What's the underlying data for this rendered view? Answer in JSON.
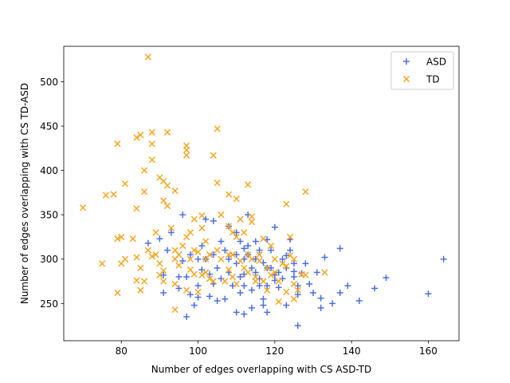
{
  "chart_data": {
    "type": "scatter",
    "title": "",
    "xlabel": "Number of edges overlapping with CS ASD-TD",
    "ylabel": "Number of edges overlapping with CS TD-ASD",
    "xlim": [
      65,
      168
    ],
    "ylim": [
      208,
      540
    ],
    "xticks": [
      80,
      100,
      120,
      140,
      160
    ],
    "yticks": [
      250,
      300,
      350,
      400,
      450,
      500
    ],
    "grid": false,
    "legend_position": "top-right",
    "series": [
      {
        "name": "ASD",
        "marker": "plus",
        "color": "#4c6fe0",
        "points": [
          [
            87,
            318
          ],
          [
            90,
            323
          ],
          [
            91,
            282
          ],
          [
            91,
            262
          ],
          [
            92,
            310
          ],
          [
            93,
            330
          ],
          [
            95,
            267
          ],
          [
            95,
            280
          ],
          [
            96,
            350
          ],
          [
            96,
            298
          ],
          [
            97,
            280
          ],
          [
            97,
            235
          ],
          [
            98,
            305
          ],
          [
            98,
            260
          ],
          [
            99,
            248
          ],
          [
            100,
            300
          ],
          [
            100,
            270
          ],
          [
            100,
            257
          ],
          [
            101,
            315
          ],
          [
            101,
            288
          ],
          [
            102,
            345
          ],
          [
            102,
            300
          ],
          [
            103,
            283
          ],
          [
            103,
            258
          ],
          [
            104,
            343
          ],
          [
            104,
            305
          ],
          [
            104,
            272
          ],
          [
            105,
            253
          ],
          [
            105,
            290
          ],
          [
            106,
            320
          ],
          [
            106,
            278
          ],
          [
            107,
            310
          ],
          [
            107,
            255
          ],
          [
            108,
            337
          ],
          [
            108,
            300
          ],
          [
            108,
            285
          ],
          [
            109,
            270
          ],
          [
            110,
            330
          ],
          [
            110,
            305
          ],
          [
            110,
            295
          ],
          [
            110,
            240
          ],
          [
            111,
            320
          ],
          [
            111,
            280
          ],
          [
            111,
            262
          ],
          [
            112,
            312
          ],
          [
            112,
            300
          ],
          [
            112,
            283
          ],
          [
            112,
            270
          ],
          [
            112,
            238
          ],
          [
            113,
            350
          ],
          [
            113,
            315
          ],
          [
            113,
            305
          ],
          [
            114,
            290
          ],
          [
            114,
            265
          ],
          [
            114,
            245
          ],
          [
            115,
            320
          ],
          [
            115,
            300
          ],
          [
            115,
            285
          ],
          [
            116,
            278
          ],
          [
            116,
            310
          ],
          [
            116,
            270
          ],
          [
            117,
            296
          ],
          [
            117,
            255
          ],
          [
            117,
            248
          ],
          [
            118,
            322
          ],
          [
            118,
            290
          ],
          [
            118,
            270
          ],
          [
            118,
            240
          ],
          [
            119,
            310
          ],
          [
            119,
            290
          ],
          [
            120,
            336
          ],
          [
            120,
            282
          ],
          [
            120,
            276
          ],
          [
            121,
            285
          ],
          [
            121,
            268
          ],
          [
            122,
            300
          ],
          [
            122,
            278
          ],
          [
            123,
            304
          ],
          [
            123,
            290
          ],
          [
            123,
            248
          ],
          [
            124,
            322
          ],
          [
            124,
            310
          ],
          [
            125,
            295
          ],
          [
            125,
            280
          ],
          [
            125,
            286
          ],
          [
            126,
            270
          ],
          [
            126,
            260
          ],
          [
            126,
            225
          ],
          [
            127,
            284
          ],
          [
            128,
            295
          ],
          [
            129,
            272
          ],
          [
            130,
            262
          ],
          [
            131,
            285
          ],
          [
            132,
            245
          ],
          [
            132,
            256
          ],
          [
            133,
            302
          ],
          [
            135,
            250
          ],
          [
            137,
            312
          ],
          [
            137,
            262
          ],
          [
            139,
            270
          ],
          [
            142,
            253
          ],
          [
            146,
            267
          ],
          [
            149,
            279
          ],
          [
            160,
            261
          ],
          [
            164,
            300
          ]
        ]
      },
      {
        "name": "TD",
        "marker": "x",
        "color": "#f5a623",
        "points": [
          [
            70,
            358
          ],
          [
            75,
            295
          ],
          [
            76,
            372
          ],
          [
            78,
            373
          ],
          [
            79,
            430
          ],
          [
            79,
            262
          ],
          [
            79,
            323
          ],
          [
            80,
            325
          ],
          [
            80,
            295
          ],
          [
            81,
            385
          ],
          [
            81,
            300
          ],
          [
            83,
            323
          ],
          [
            84,
            357
          ],
          [
            84,
            437
          ],
          [
            84,
            302
          ],
          [
            84,
            276
          ],
          [
            85,
            440
          ],
          [
            85,
            290
          ],
          [
            85,
            265
          ],
          [
            86,
            376
          ],
          [
            86,
            275
          ],
          [
            86,
            400
          ],
          [
            87,
            528
          ],
          [
            87,
            310
          ],
          [
            88,
            443
          ],
          [
            88,
            430
          ],
          [
            88,
            412
          ],
          [
            88,
            303
          ],
          [
            89,
            305
          ],
          [
            89,
            330
          ],
          [
            90,
            392
          ],
          [
            90,
            282
          ],
          [
            90,
            295
          ],
          [
            91,
            366
          ],
          [
            91,
            388
          ],
          [
            91,
            287
          ],
          [
            91,
            275
          ],
          [
            92,
            443
          ],
          [
            92,
            383
          ],
          [
            92,
            360
          ],
          [
            93,
            335
          ],
          [
            94,
            377
          ],
          [
            94,
            310
          ],
          [
            94,
            300
          ],
          [
            94,
            272
          ],
          [
            94,
            243
          ],
          [
            95,
            293
          ],
          [
            95,
            305
          ],
          [
            96,
            315
          ],
          [
            97,
            428
          ],
          [
            97,
            417
          ],
          [
            97,
            423
          ],
          [
            97,
            325
          ],
          [
            97,
            265
          ],
          [
            98,
            330
          ],
          [
            98,
            300
          ],
          [
            98,
            288
          ],
          [
            99,
            345
          ],
          [
            99,
            310
          ],
          [
            99,
            283
          ],
          [
            100,
            308
          ],
          [
            100,
            263
          ],
          [
            101,
            335
          ],
          [
            101,
            349
          ],
          [
            101,
            282
          ],
          [
            102,
            320
          ],
          [
            102,
            300
          ],
          [
            102,
            285
          ],
          [
            103,
            305
          ],
          [
            103,
            278
          ],
          [
            104,
            417
          ],
          [
            104,
            275
          ],
          [
            105,
            447
          ],
          [
            105,
            386
          ],
          [
            105,
            310
          ],
          [
            106,
            300
          ],
          [
            106,
            350
          ],
          [
            107,
            275
          ],
          [
            108,
            373
          ],
          [
            108,
            337
          ],
          [
            108,
            305
          ],
          [
            108,
            288
          ],
          [
            109,
            330
          ],
          [
            109,
            305
          ],
          [
            109,
            280
          ],
          [
            110,
            368
          ],
          [
            110,
            325
          ],
          [
            110,
            272
          ],
          [
            111,
            298
          ],
          [
            111,
            345
          ],
          [
            112,
            330
          ],
          [
            112,
            290
          ],
          [
            113,
            384
          ],
          [
            113,
            305
          ],
          [
            113,
            285
          ],
          [
            114,
            348
          ],
          [
            114,
            342
          ],
          [
            114,
            300
          ],
          [
            115,
            275
          ],
          [
            115,
            280
          ],
          [
            116,
            305
          ],
          [
            116,
            298
          ],
          [
            117,
            323
          ],
          [
            117,
            275
          ],
          [
            118,
            265
          ],
          [
            118,
            290
          ],
          [
            119,
            282
          ],
          [
            119,
            315
          ],
          [
            120,
            300
          ],
          [
            120,
            285
          ],
          [
            121,
            275
          ],
          [
            121,
            252
          ],
          [
            122,
            295
          ],
          [
            123,
            362
          ],
          [
            123,
            263
          ],
          [
            123,
            292
          ],
          [
            124,
            325
          ],
          [
            124,
            304
          ],
          [
            125,
            300
          ],
          [
            125,
            255
          ],
          [
            125,
            272
          ],
          [
            126,
            265
          ],
          [
            127,
            283
          ],
          [
            128,
            376
          ],
          [
            128,
            282
          ],
          [
            133,
            285
          ]
        ]
      }
    ]
  }
}
